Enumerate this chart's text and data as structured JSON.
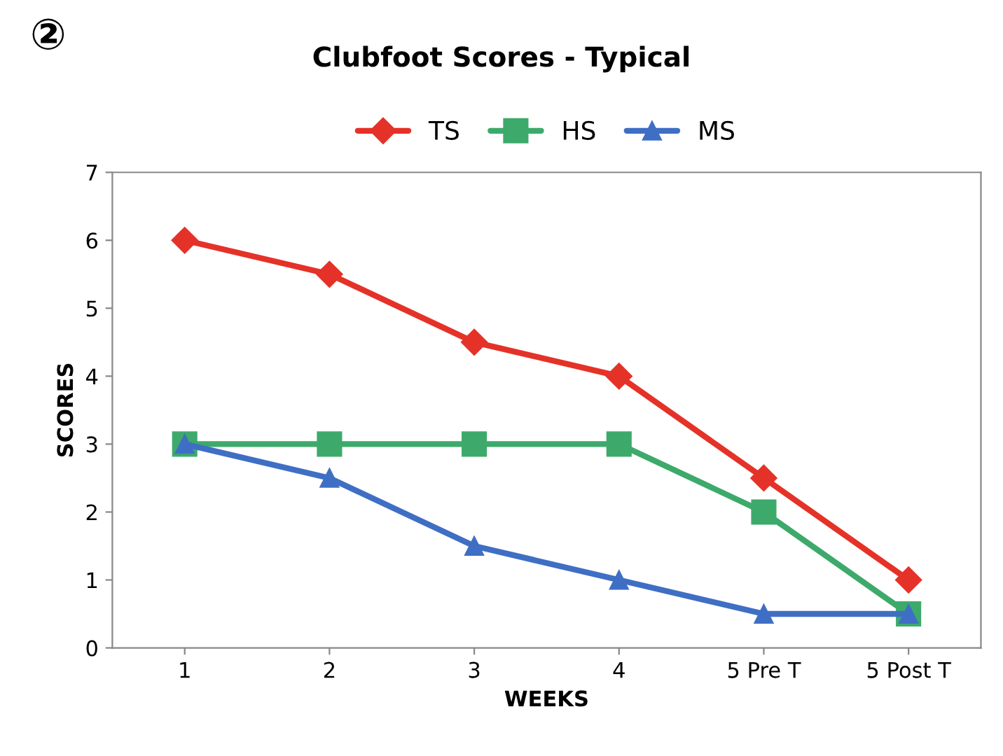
{
  "chart_data": {
    "type": "line",
    "title": "Clubfoot Scores - Typical",
    "xlabel": "WEEKS",
    "ylabel": "SCORES",
    "annotations": [
      "②"
    ],
    "categories": [
      "1",
      "2",
      "3",
      "4",
      "5 Pre T",
      "5 Post T"
    ],
    "series": [
      {
        "name": "TS",
        "color": "#e53228",
        "marker": "diamond",
        "values": [
          6,
          5.5,
          4.5,
          4,
          2.5,
          1
        ]
      },
      {
        "name": "HS",
        "color": "#3daa6b",
        "marker": "square",
        "values": [
          3,
          3,
          3,
          3,
          2,
          0.5
        ]
      },
      {
        "name": "MS",
        "color": "#3f6fc4",
        "marker": "triangle",
        "values": [
          3,
          2.5,
          1.5,
          1,
          0.5,
          0.5
        ]
      }
    ],
    "ylim": [
      0,
      7
    ],
    "yticks": [
      0,
      1,
      2,
      3,
      4,
      5,
      6,
      7
    ],
    "grid": false,
    "legend": "top",
    "line_style": "solid"
  }
}
